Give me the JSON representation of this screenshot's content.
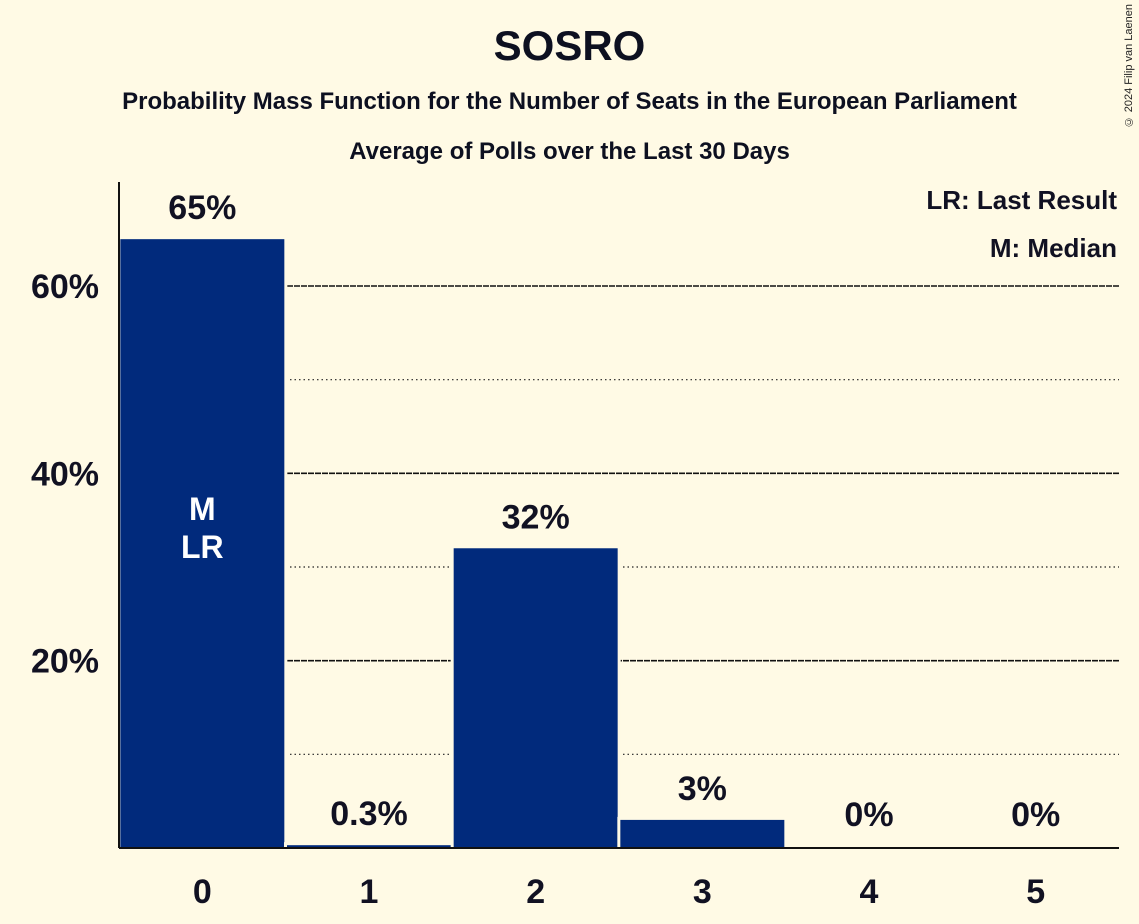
{
  "title": "SOSRO",
  "subtitle": "Probability Mass Function for the Number of Seats in the European Parliament",
  "subtitle2": "Average of Polls over the Last 30 Days",
  "copyright": "© 2024 Filip van Laenen",
  "legend": {
    "lr": "LR: Last Result",
    "m": "M: Median"
  },
  "colors": {
    "bar": "#012A7C",
    "background": "#FFFAE5"
  },
  "chart_data": {
    "type": "bar",
    "categories": [
      "0",
      "1",
      "2",
      "3",
      "4",
      "5"
    ],
    "values": [
      65,
      0.3,
      32,
      3,
      0,
      0
    ],
    "value_labels": [
      "65%",
      "0.3%",
      "32%",
      "3%",
      "0%",
      "0%"
    ],
    "bar_annotations": [
      [
        "M",
        "LR"
      ],
      [],
      [],
      [],
      [],
      []
    ],
    "ylim": [
      0,
      70
    ],
    "yticks": [
      20,
      40,
      60
    ],
    "ytick_labels": [
      "20%",
      "40%",
      "60%"
    ],
    "minor_gridlines": [
      10,
      30,
      50
    ],
    "grid": true,
    "legend_position": "top-right"
  }
}
